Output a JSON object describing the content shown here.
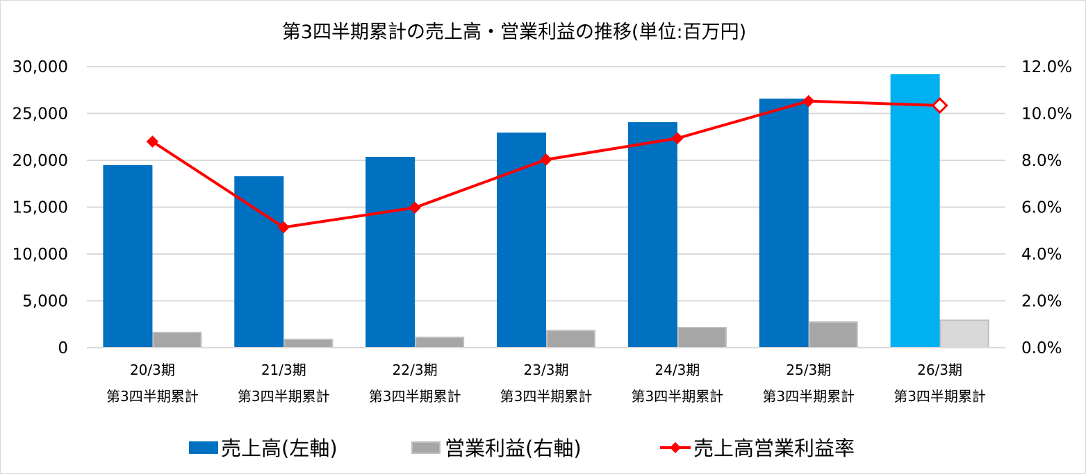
{
  "chart_data": {
    "type": "bar",
    "title": "第3四半期累計の売上高・営業利益の推移(単位:百万円)",
    "categories": [
      [
        "20/3期",
        "第3四半期累計"
      ],
      [
        "21/3期",
        "第3四半期累計"
      ],
      [
        "22/3期",
        "第3四半期累計"
      ],
      [
        "23/3期",
        "第3四半期累計"
      ],
      [
        "24/3期",
        "第3四半期累計"
      ],
      [
        "25/3期",
        "第3四半期累計"
      ],
      [
        "26/3期",
        "第3四半期累計"
      ]
    ],
    "y_left": {
      "range": [
        0,
        30000
      ],
      "ticks": [
        "0",
        "5,000",
        "10,000",
        "15,000",
        "20,000",
        "25,000",
        "30,000"
      ]
    },
    "y_right": {
      "range": [
        0,
        12
      ],
      "ticks": [
        "0.0%",
        "2.0%",
        "4.0%",
        "6.0%",
        "8.0%",
        "10.0%",
        "12.0%"
      ]
    },
    "grid": true,
    "legend_position": "bottom",
    "series": [
      {
        "name": "売上高(左軸)",
        "type": "bar",
        "color": "#0070c0",
        "highlight_color": "#00b0f0",
        "values": [
          19480,
          18300,
          20370,
          22960,
          24070,
          26580,
          29190
        ]
      },
      {
        "name": "営業利益(右軸)",
        "type": "bar",
        "color": "#a6a6a6",
        "highlight_color": "#d9d9d9",
        "values": [
          1700,
          960,
          1180,
          1900,
          2220,
          2810,
          3000
        ]
      },
      {
        "name": "売上高営業利益率",
        "type": "line",
        "color": "#ff0000",
        "values": [
          8.8,
          5.14,
          5.98,
          8.03,
          8.94,
          10.53,
          10.34
        ]
      }
    ]
  }
}
